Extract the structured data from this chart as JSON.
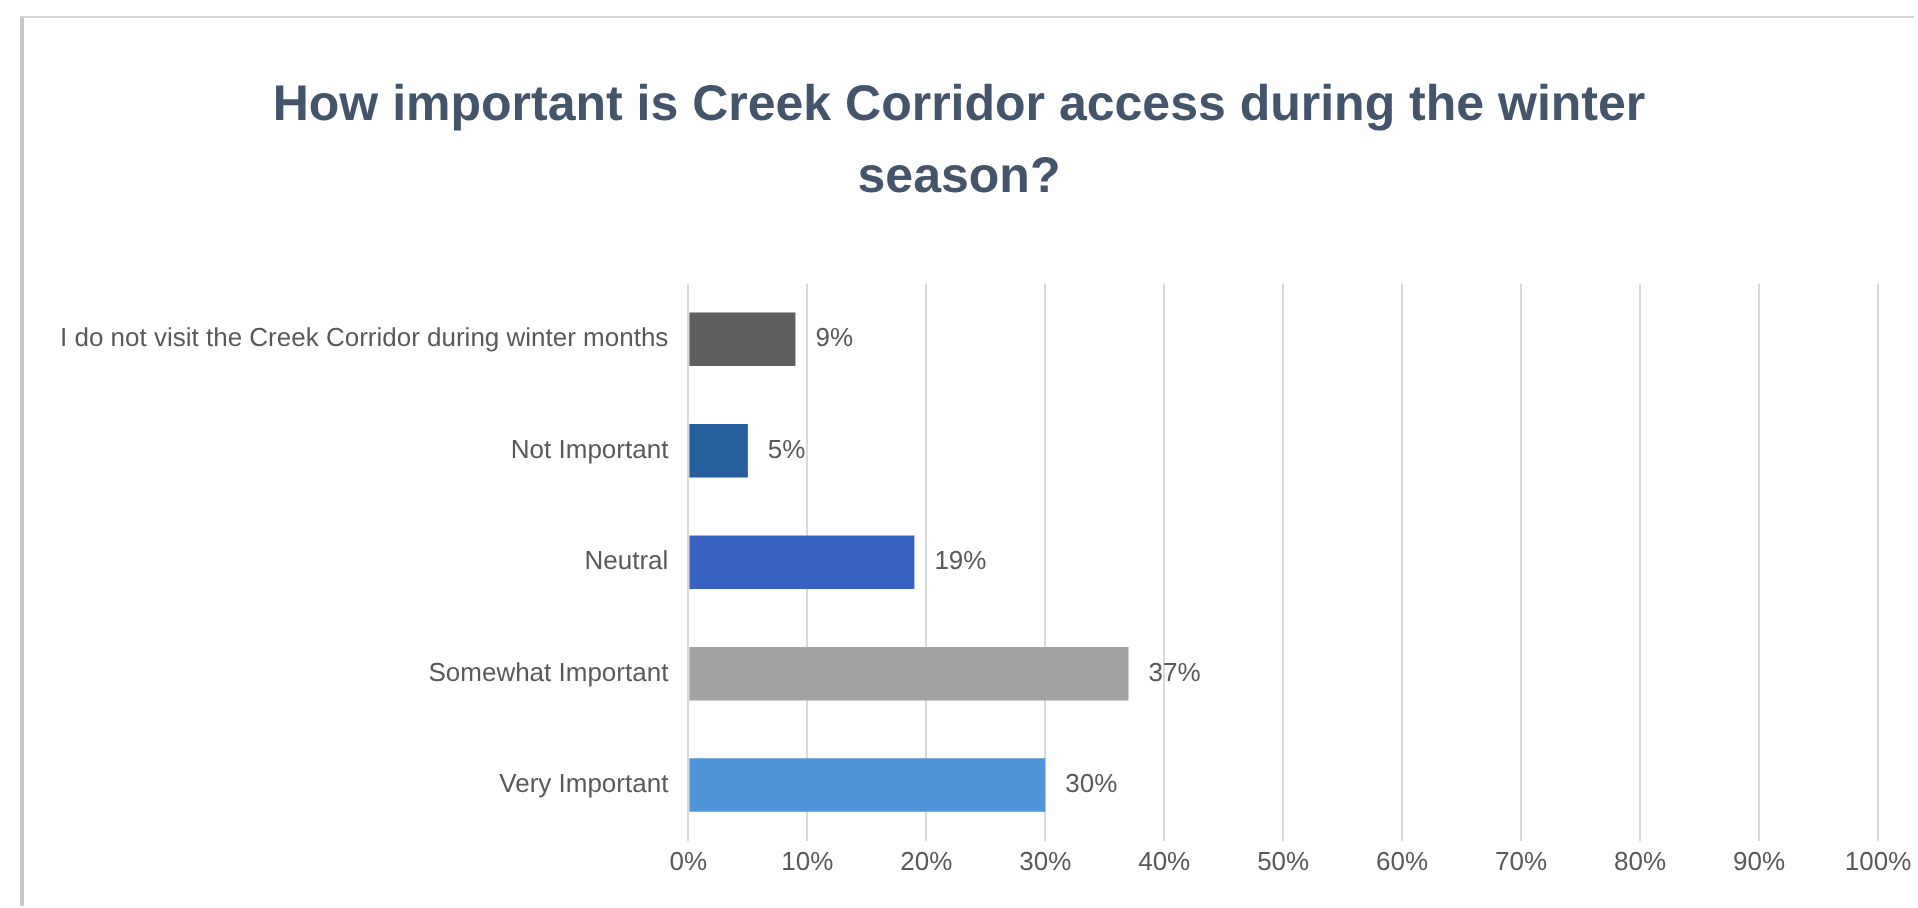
{
  "chart_data": {
    "type": "bar",
    "orientation": "horizontal",
    "title": "How important is Creek Corridor access during the winter season?",
    "categories": [
      "I do not visit the Creek Corridor during winter months",
      "Not Important",
      "Neutral",
      "Somewhat Important",
      "Very Important"
    ],
    "values": [
      9,
      5,
      19,
      37,
      30
    ],
    "colors": [
      "#5f5f5f",
      "#265f9c",
      "#3a62c4",
      "#a3a3a3",
      "#4f94d9"
    ],
    "value_labels": [
      "9%",
      "5%",
      "19%",
      "37%",
      "30%"
    ],
    "xlim": [
      0,
      100
    ],
    "xticks": [
      {
        "value": 0,
        "label": "0%"
      },
      {
        "value": 10,
        "label": "10%"
      },
      {
        "value": 20,
        "label": "20%"
      },
      {
        "value": 30,
        "label": "30%"
      },
      {
        "value": 40,
        "label": "40%"
      },
      {
        "value": 50,
        "label": "50%"
      },
      {
        "value": 60,
        "label": "60%"
      },
      {
        "value": 70,
        "label": "70%"
      },
      {
        "value": 80,
        "label": "80%"
      },
      {
        "value": 90,
        "label": "90%"
      },
      {
        "value": 100,
        "label": "100%"
      }
    ],
    "grid": "x"
  }
}
